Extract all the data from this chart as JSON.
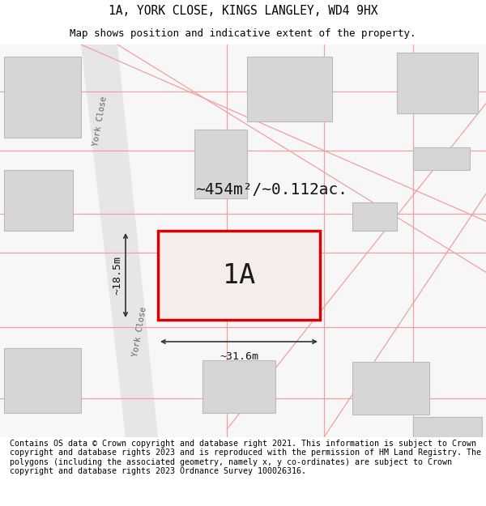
{
  "title": "1A, YORK CLOSE, KINGS LANGLEY, WD4 9HX",
  "subtitle": "Map shows position and indicative extent of the property.",
  "footnote": "Contains OS data © Crown copyright and database right 2021. This information is subject to Crown copyright and database rights 2023 and is reproduced with the permission of HM Land Registry. The polygons (including the associated geometry, namely x, y co-ordinates) are subject to Crown copyright and database rights 2023 Ordnance Survey 100026316.",
  "area_text": "~454m²/~0.112ac.",
  "label_text": "1A",
  "dim_width": "~31.6m",
  "dim_height": "~18.5m",
  "road_label": "York Close",
  "bg_color": "#f7f7f7",
  "road_fill": "#e6e6e6",
  "road_stroke": "#cccccc",
  "building_fill": "#d6d6d6",
  "building_stroke": "#bbbbbb",
  "plot_fill": "#f5ecec",
  "plot_stroke": "#dd0000",
  "pink_line": "#f0a0a0",
  "line_color": "#333333",
  "title_fontsize": 10.5,
  "subtitle_fontsize": 9,
  "footnote_fontsize": 7.2,
  "road_label_color": "#666666"
}
